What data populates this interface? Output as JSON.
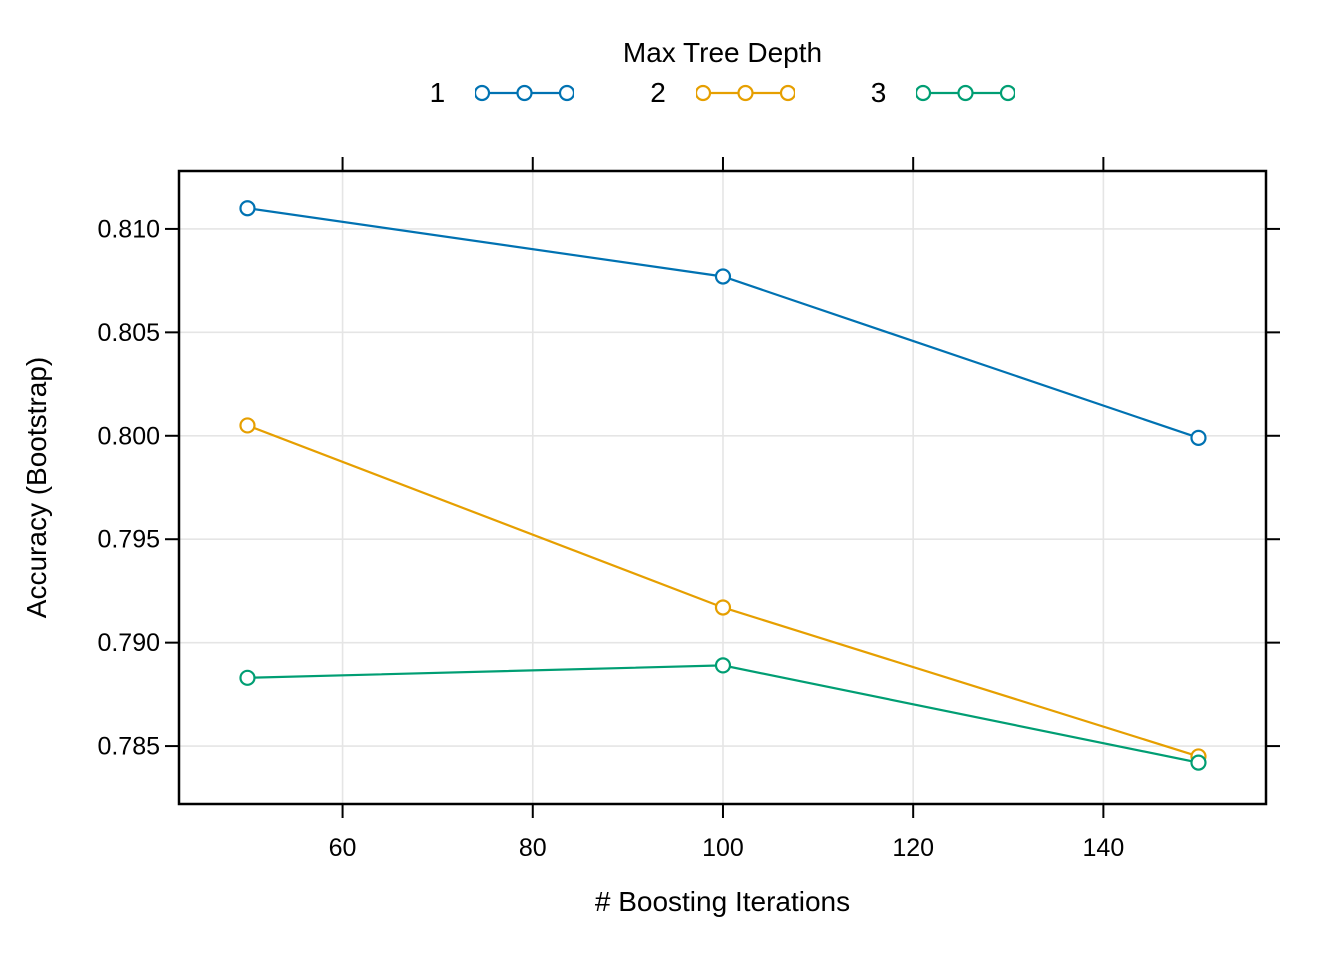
{
  "legend": {
    "title": "Max Tree Depth",
    "entries": [
      {
        "label": "1",
        "color": "#0072B2"
      },
      {
        "label": "2",
        "color": "#E69F00"
      },
      {
        "label": "3",
        "color": "#009E73"
      }
    ]
  },
  "chart_data": {
    "type": "line",
    "title": "Max Tree Depth",
    "xlabel": "# Boosting Iterations",
    "ylabel": "Accuracy (Bootstrap)",
    "x": [
      50,
      100,
      150
    ],
    "series": [
      {
        "name": "1",
        "color": "#0072B2",
        "values": [
          0.811,
          0.8077,
          0.7999
        ]
      },
      {
        "name": "2",
        "color": "#E69F00",
        "values": [
          0.8005,
          0.7917,
          0.7845
        ]
      },
      {
        "name": "3",
        "color": "#009E73",
        "values": [
          0.7883,
          0.7889,
          0.7842
        ]
      }
    ],
    "xlim": [
      42.8,
      157.1
    ],
    "ylim": [
      0.7822,
      0.8128
    ],
    "xticks": [
      60,
      80,
      100,
      120,
      140
    ],
    "xtick_labels": [
      "60",
      "80",
      "100",
      "120",
      "140"
    ],
    "yticks": [
      0.785,
      0.79,
      0.795,
      0.8,
      0.805,
      0.81
    ],
    "ytick_labels": [
      "0.785",
      "0.790",
      "0.795",
      "0.800",
      "0.805",
      "0.810"
    ],
    "grid": true,
    "gridline_color": "#e5e5e5",
    "box_color": "#000000",
    "marker": "open-circle",
    "legend_position": "top"
  }
}
